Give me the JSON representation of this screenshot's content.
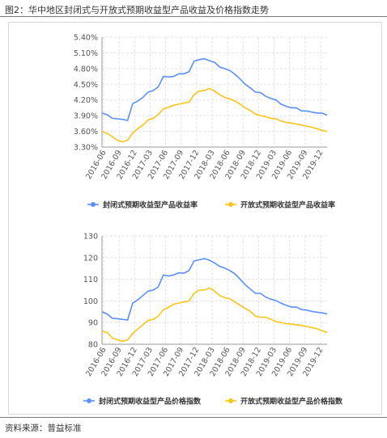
{
  "figure_title": "图2：华中地区封闭式与开放式预期收益型产品收益及价格指数走势",
  "source_text": "资料来源：普益标准",
  "colors": {
    "series1": "#5b8ff9",
    "series2": "#fcc419",
    "grid": "#e3e3e3",
    "axis": "#999999"
  },
  "chart_data": [
    {
      "type": "line",
      "ylim": [
        3.3,
        5.4
      ],
      "y_ticks": [
        "5.40%",
        "5.10%",
        "4.80%",
        "4.50%",
        "4.20%",
        "3.90%",
        "3.60%",
        "3.30%"
      ],
      "y_tick_values": [
        5.4,
        5.1,
        4.8,
        4.5,
        4.2,
        3.9,
        3.6,
        3.3
      ],
      "x_tick_labels": [
        "2016-06",
        "2016-09",
        "2016-12",
        "2017-03",
        "2017-06",
        "2017-09",
        "2017-12",
        "2018-03",
        "2018-06",
        "2018-09",
        "2018-12",
        "2019-03",
        "2019-06",
        "2019-09",
        "2019-12"
      ],
      "grid": true,
      "legend_position": "bottom",
      "series": [
        {
          "name": "封闭式预期收益型产品收益率",
          "values": [
            3.95,
            3.92,
            3.85,
            3.84,
            3.83,
            3.81,
            4.13,
            4.18,
            4.25,
            4.35,
            4.38,
            4.45,
            4.65,
            4.64,
            4.65,
            4.7,
            4.7,
            4.74,
            4.94,
            4.97,
            4.99,
            4.95,
            4.92,
            4.83,
            4.8,
            4.76,
            4.69,
            4.6,
            4.5,
            4.43,
            4.35,
            4.34,
            4.27,
            4.23,
            4.2,
            4.12,
            4.08,
            4.05,
            4.05,
            3.99,
            3.99,
            3.97,
            3.95,
            3.95,
            3.91
          ]
        },
        {
          "name": "开放式预期收益型产品收益率",
          "values": [
            3.6,
            3.56,
            3.5,
            3.43,
            3.4,
            3.43,
            3.57,
            3.65,
            3.72,
            3.82,
            3.85,
            3.92,
            4.03,
            4.06,
            4.1,
            4.12,
            4.14,
            4.16,
            4.3,
            4.37,
            4.38,
            4.42,
            4.37,
            4.3,
            4.25,
            4.22,
            4.18,
            4.12,
            4.05,
            4.0,
            3.93,
            3.9,
            3.88,
            3.85,
            3.84,
            3.8,
            3.77,
            3.76,
            3.74,
            3.72,
            3.7,
            3.68,
            3.65,
            3.62,
            3.6
          ]
        }
      ]
    },
    {
      "type": "line",
      "ylim": [
        80,
        130
      ],
      "y_ticks": [
        "130",
        "120",
        "110",
        "100",
        "90",
        "80"
      ],
      "y_tick_values": [
        130,
        120,
        110,
        100,
        90,
        80
      ],
      "x_tick_labels": [
        "2016-06",
        "2016-09",
        "2016-12",
        "2017-03",
        "2017-06",
        "2017-09",
        "2017-12",
        "2018-03",
        "2018-06",
        "2018-09",
        "2018-12",
        "2019-03",
        "2019-06",
        "2019-09",
        "2019-12"
      ],
      "grid": true,
      "legend_position": "bottom",
      "series": [
        {
          "name": "封闭式预期收益型产品价格指数",
          "values": [
            95,
            94,
            92,
            91.8,
            91.5,
            91.2,
            99,
            100.5,
            102.5,
            104.5,
            105,
            106.5,
            112,
            111.5,
            112,
            113,
            112.8,
            114,
            118.5,
            119,
            119.5,
            118.8,
            117.5,
            116,
            115.2,
            114,
            112.5,
            110,
            107.5,
            105.5,
            103.5,
            103.5,
            101.8,
            100.8,
            100.2,
            99,
            98,
            97.2,
            97.2,
            96,
            95.8,
            95.2,
            94.8,
            94.5,
            94
          ]
        },
        {
          "name": "开放式预期收益型产品价格指数",
          "values": [
            86,
            85.5,
            83,
            82,
            81.5,
            82,
            85,
            87,
            89,
            91,
            91.5,
            93,
            96,
            97,
            98.5,
            99,
            99.5,
            100,
            103.5,
            105,
            105,
            106,
            104.5,
            102.5,
            101.5,
            101,
            99.5,
            98,
            96.5,
            95.2,
            93,
            92.5,
            92.5,
            91.5,
            90.5,
            90,
            89.5,
            89.3,
            89,
            88.7,
            88.2,
            87.7,
            87.2,
            86.2,
            85.5
          ]
        }
      ]
    }
  ]
}
